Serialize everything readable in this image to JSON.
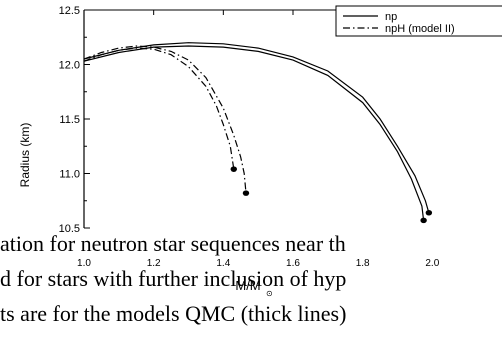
{
  "chart_data": {
    "type": "line",
    "xlabel": "M/M",
    "xlabel_sub": "⊙",
    "ylabel": "Radius (km)",
    "xlim": [
      1.0,
      2.2
    ],
    "ylim": [
      10.5,
      12.5
    ],
    "xticks": [
      "1.0",
      "1.2",
      "1.4",
      "1.6",
      "1.8",
      "2.0"
    ],
    "xtick_values": [
      1.0,
      1.2,
      1.4,
      1.6,
      1.8,
      2.0
    ],
    "yticks": [
      "10.5",
      "11.0",
      "11.5",
      "12.0",
      "12.5"
    ],
    "ytick_values": [
      10.5,
      11.0,
      11.5,
      12.0,
      12.5
    ],
    "legend_position": "top-right",
    "series": [
      {
        "name": "np",
        "style": "solid",
        "x": [
          1.0,
          1.1,
          1.2,
          1.3,
          1.4,
          1.5,
          1.6,
          1.7,
          1.8,
          1.85,
          1.9,
          1.94,
          1.97,
          1.975
        ],
        "y": [
          12.03,
          12.11,
          12.16,
          12.17,
          12.16,
          12.12,
          12.04,
          11.9,
          11.65,
          11.45,
          11.2,
          10.95,
          10.7,
          10.57
        ],
        "end_marker": true
      },
      {
        "name": "",
        "style": "solid",
        "x": [
          1.0,
          1.1,
          1.2,
          1.3,
          1.4,
          1.5,
          1.6,
          1.7,
          1.8,
          1.85,
          1.9,
          1.95,
          1.98,
          1.99
        ],
        "y": [
          12.05,
          12.13,
          12.18,
          12.2,
          12.19,
          12.15,
          12.07,
          11.94,
          11.7,
          11.5,
          11.25,
          10.98,
          10.75,
          10.64
        ],
        "end_marker": true
      },
      {
        "name": "npH (model II)",
        "style": "dash-dot",
        "x": [
          1.0,
          1.05,
          1.1,
          1.15,
          1.2,
          1.25,
          1.3,
          1.35,
          1.38,
          1.4,
          1.42,
          1.43
        ],
        "y": [
          12.03,
          12.09,
          12.13,
          12.15,
          12.14,
          12.09,
          11.98,
          11.8,
          11.62,
          11.45,
          11.25,
          11.04
        ],
        "end_marker": true
      },
      {
        "name": "",
        "style": "dash-dot",
        "x": [
          1.0,
          1.05,
          1.1,
          1.15,
          1.2,
          1.25,
          1.3,
          1.35,
          1.4,
          1.43,
          1.45,
          1.46,
          1.465
        ],
        "y": [
          12.05,
          12.11,
          12.15,
          12.17,
          12.16,
          12.12,
          12.04,
          11.88,
          11.6,
          11.35,
          11.15,
          11.0,
          10.82
        ],
        "end_marker": true
      }
    ]
  },
  "body_text": {
    "line1": "ation for neutron star sequences near th",
    "line2": "d for stars with further inclusion of hyp",
    "line3": "ts are for the models QMC (thick lines)"
  }
}
